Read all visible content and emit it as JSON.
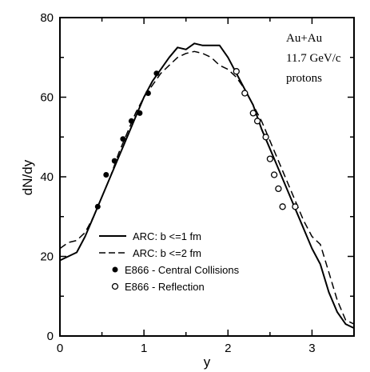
{
  "chart_data": {
    "type": "line",
    "title": "",
    "xlabel": "y",
    "ylabel": "dN/dy",
    "xlim": [
      0,
      3.5
    ],
    "ylim": [
      0,
      80
    ],
    "xticks": [
      "0",
      "1",
      "2",
      "3"
    ],
    "yticks": [
      "0",
      "20",
      "40",
      "60",
      "80"
    ],
    "grid": false,
    "legend_position": "bottom-left",
    "annotation": [
      "Au+Au",
      "11.7 GeV/c",
      "protons"
    ],
    "series": [
      {
        "name": "ARC: b <=1 fm",
        "style": "solid",
        "x": [
          0.0,
          0.1,
          0.2,
          0.3,
          0.4,
          0.5,
          0.6,
          0.7,
          0.8,
          0.9,
          1.0,
          1.1,
          1.2,
          1.3,
          1.4,
          1.5,
          1.6,
          1.7,
          1.8,
          1.9,
          2.0,
          2.1,
          2.2,
          2.3,
          2.4,
          2.5,
          2.6,
          2.7,
          2.8,
          2.9,
          3.0,
          3.1,
          3.2,
          3.3,
          3.4,
          3.5
        ],
        "y": [
          19,
          20,
          21,
          25,
          30,
          35,
          40,
          45,
          50,
          55,
          60,
          64,
          67,
          70,
          72.5,
          72,
          73.5,
          73,
          73,
          73,
          70,
          66,
          62,
          58,
          52,
          47,
          42,
          37,
          32,
          27,
          22,
          18,
          11,
          6,
          3,
          2
        ]
      },
      {
        "name": "ARC: b <=2 fm",
        "style": "dashed",
        "x": [
          0.0,
          0.1,
          0.2,
          0.3,
          0.4,
          0.5,
          0.6,
          0.7,
          0.8,
          0.9,
          1.0,
          1.1,
          1.2,
          1.3,
          1.4,
          1.5,
          1.6,
          1.7,
          1.8,
          1.9,
          2.0,
          2.1,
          2.2,
          2.3,
          2.4,
          2.5,
          2.6,
          2.7,
          2.8,
          2.9,
          3.0,
          3.1,
          3.2,
          3.3,
          3.4,
          3.5
        ],
        "y": [
          22,
          23.5,
          24,
          26,
          30,
          35,
          40,
          46,
          51,
          56,
          60,
          63,
          66,
          68,
          70,
          71,
          71.5,
          71,
          70,
          68,
          67,
          65,
          62,
          58,
          54,
          49,
          44,
          39,
          34,
          29,
          25,
          23,
          16,
          9,
          4,
          3
        ]
      },
      {
        "name": "E866 - Central Collisions",
        "style": "filled-marker",
        "x": [
          0.45,
          0.55,
          0.65,
          0.75,
          0.85,
          0.95,
          1.05,
          1.15
        ],
        "y": [
          32.5,
          40.5,
          44,
          49.5,
          54,
          56,
          61,
          66
        ]
      },
      {
        "name": "E866 - Reflection",
        "style": "open-marker",
        "x": [
          2.1,
          2.2,
          2.3,
          2.35,
          2.45,
          2.5,
          2.55,
          2.6,
          2.65,
          2.8
        ],
        "y": [
          66.5,
          61,
          56,
          54,
          50,
          44.5,
          40.5,
          37,
          32.5,
          32.5
        ]
      }
    ]
  }
}
